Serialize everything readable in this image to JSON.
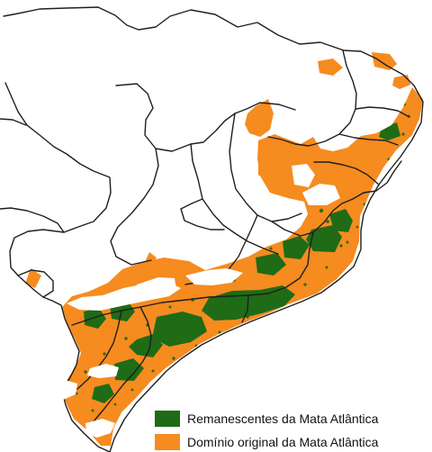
{
  "legend": {
    "items": [
      {
        "id": "remnants",
        "label": "Remanescentes da Mata Atlântica",
        "color": "#1f6b16"
      },
      {
        "id": "original-domain",
        "label": "Domínio original da Mata Atlântica",
        "color": "#f68b1f"
      }
    ]
  },
  "colors": {
    "background": "#ffffff",
    "boundary": "#1f1f1f",
    "orange": "#f68b1f",
    "green": "#1f6b16"
  }
}
